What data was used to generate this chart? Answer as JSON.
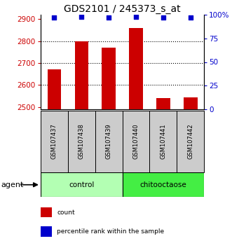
{
  "title": "GDS2101 / 245373_s_at",
  "samples": [
    "GSM107437",
    "GSM107438",
    "GSM107439",
    "GSM107440",
    "GSM107441",
    "GSM107442"
  ],
  "counts": [
    2672,
    2800,
    2770,
    2860,
    2540,
    2545
  ],
  "percentile_ranks": [
    97,
    98,
    97,
    98,
    97,
    97
  ],
  "group_colors": {
    "control": "#b3ffb3",
    "chitooctaose": "#44ee44"
  },
  "bar_color": "#cc0000",
  "dot_color": "#0000cc",
  "ylim_left": [
    2490,
    2920
  ],
  "ylim_right": [
    0,
    100
  ],
  "yticks_left": [
    2500,
    2600,
    2700,
    2800,
    2900
  ],
  "yticks_right": [
    0,
    25,
    50,
    75,
    100
  ],
  "yticklabels_right": [
    "0",
    "25",
    "50",
    "75",
    "100%"
  ],
  "grid_values": [
    2600,
    2700,
    2800
  ],
  "bar_color_left": "#cc0000",
  "tick_color_right": "#0000cc",
  "bar_width": 0.5,
  "agent_label": "agent",
  "control_label": "control",
  "chitooctaose_label": "chitooctaose",
  "legend_count_label": "count",
  "legend_percentile_label": "percentile rank within the sample",
  "title_fontsize": 10,
  "tick_fontsize": 7.5,
  "sample_box_color": "#cccccc",
  "sample_font_size": 6.0,
  "group_font_size": 7.5,
  "legend_font_size": 6.5,
  "agent_font_size": 8
}
